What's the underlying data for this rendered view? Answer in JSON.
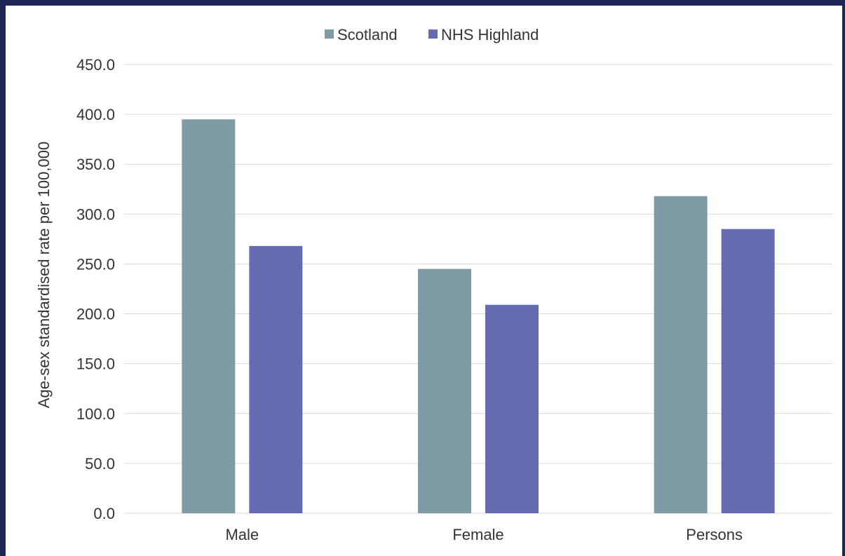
{
  "chart_data": {
    "type": "bar",
    "categories": [
      "Male",
      "Female",
      "Persons"
    ],
    "series": [
      {
        "name": "Scotland",
        "values": [
          395.0,
          245.0,
          318.0
        ],
        "color": "#7f9ba6"
      },
      {
        "name": "NHS Highland",
        "values": [
          268.0,
          209.0,
          285.0
        ],
        "color": "#646bb0"
      }
    ],
    "ylabel": "Age-sex standardised rate per 100,000",
    "ylim": [
      0,
      450
    ],
    "yticks": [
      "0.0",
      "50.0",
      "100.0",
      "150.0",
      "200.0",
      "250.0",
      "300.0",
      "350.0",
      "400.0",
      "450.0"
    ],
    "grid": true,
    "legend_position": "top-center"
  },
  "colors": {
    "frame": "#1f2552",
    "grid": "#d9d9d9",
    "text": "#333333"
  }
}
